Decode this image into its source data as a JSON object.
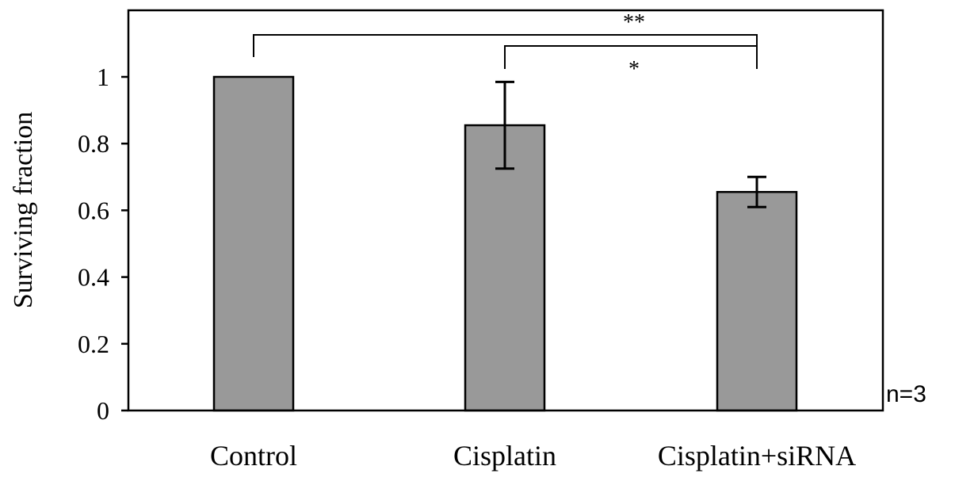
{
  "chart_data": {
    "type": "bar",
    "title": "",
    "xlabel": "",
    "ylabel": "Surviving fraction",
    "ylim": [
      0,
      1.2
    ],
    "yticks": [
      "0",
      "0.2",
      "0.4",
      "0.6",
      "0.8",
      "1"
    ],
    "ytick_values": [
      0,
      0.2,
      0.4,
      0.6,
      0.8,
      1.0
    ],
    "grid": false,
    "categories": [
      "Control",
      "Cisplatin",
      "Cisplatin+siRNA"
    ],
    "values": [
      1.0,
      0.855,
      0.655
    ],
    "errors": [
      0,
      0.13,
      0.045
    ],
    "bar_color": "#999999",
    "annotation": "n=3",
    "significance": [
      {
        "from": 0,
        "to": 2,
        "label": "**"
      },
      {
        "from": 1,
        "to": 2,
        "label": "*"
      }
    ]
  }
}
